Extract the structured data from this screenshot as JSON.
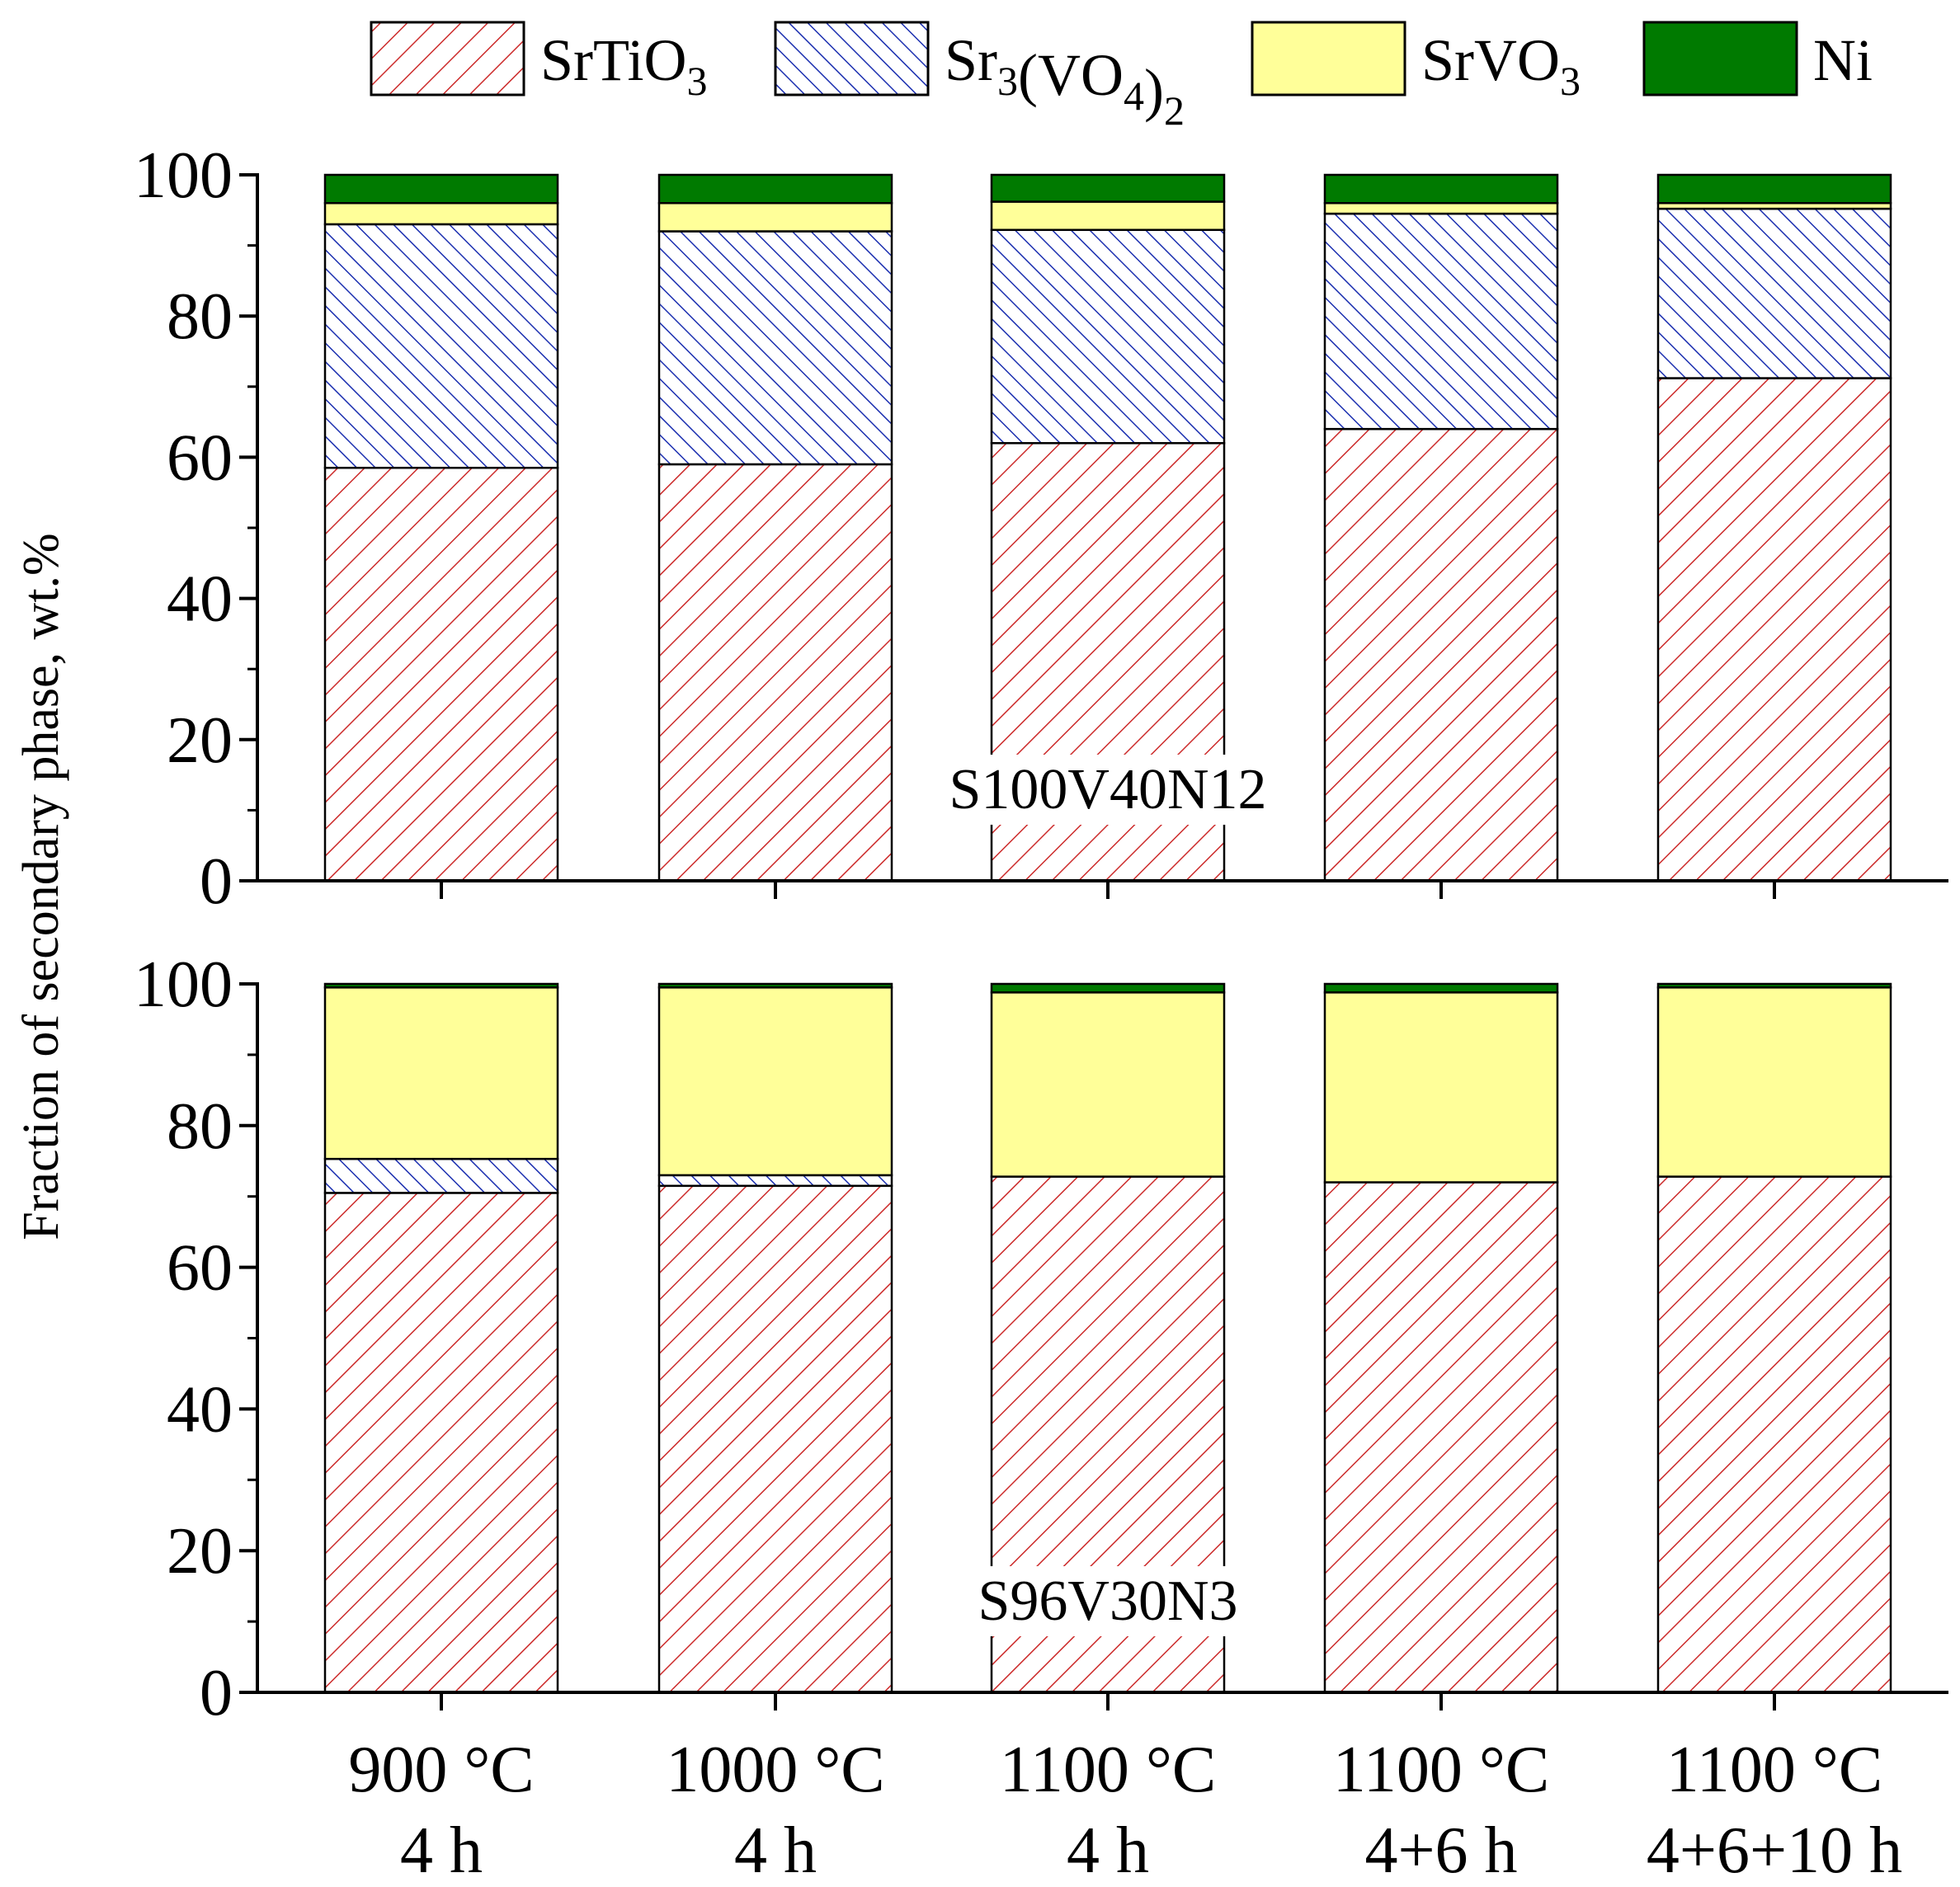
{
  "chart_data": {
    "type": "bar",
    "stacked": true,
    "ylabel": "Fraction of secondary phase, wt.%",
    "ylim": [
      0,
      100
    ],
    "yticks": [
      "0",
      "20",
      "40",
      "60",
      "80",
      "100"
    ],
    "categories": [
      [
        "900 °C",
        "4 h"
      ],
      [
        "1000 °C",
        "4 h"
      ],
      [
        "1100 °C",
        "4 h"
      ],
      [
        "1100 °C",
        "4+6 h"
      ],
      [
        "1100 °C",
        "4+6+10 h"
      ]
    ],
    "legend": [
      {
        "key": "srtio3",
        "base": "SrTiO",
        "sub1": "3",
        "mid": "",
        "sub2": "",
        "color": "#cc2a2a",
        "pattern": "diag-red"
      },
      {
        "key": "sr3vo42",
        "base": "Sr",
        "sub1": "3",
        "mid": "(VO",
        "sub2": "4",
        "tail": ")",
        "sub3": "2",
        "color": "#1b2fb0",
        "pattern": "diag-blue"
      },
      {
        "key": "srvo3",
        "base": "SrVO",
        "sub1": "3",
        "color": "#ffff99",
        "pattern": "solid"
      },
      {
        "key": "ni",
        "base": "Ni",
        "sub1": "",
        "color": "#007a00",
        "pattern": "solid"
      }
    ],
    "panels": [
      {
        "sample": "S100V40N12",
        "series": [
          {
            "name": "SrTiO3",
            "values": [
              58.5,
              59,
              62,
              64,
              71.2
            ]
          },
          {
            "name": "Sr3(VO4)2",
            "values": [
              34.5,
              33,
              30.2,
              30.5,
              24
            ]
          },
          {
            "name": "SrVO3",
            "values": [
              3,
              4,
              4,
              1.5,
              0.8
            ]
          },
          {
            "name": "Ni",
            "values": [
              4,
              4,
              3.8,
              4,
              4
            ]
          }
        ]
      },
      {
        "sample": "S96V30N3",
        "series": [
          {
            "name": "SrTiO3",
            "values": [
              70.5,
              71.5,
              72.8,
              72,
              72.8
            ]
          },
          {
            "name": "Sr3(VO4)2",
            "values": [
              4.8,
              1.5,
              0,
              0,
              0
            ]
          },
          {
            "name": "SrVO3",
            "values": [
              24.2,
              26.5,
              26,
              26.8,
              26.7
            ]
          },
          {
            "name": "Ni",
            "values": [
              0.5,
              0.5,
              1.2,
              1.2,
              0.5
            ]
          }
        ]
      }
    ]
  }
}
